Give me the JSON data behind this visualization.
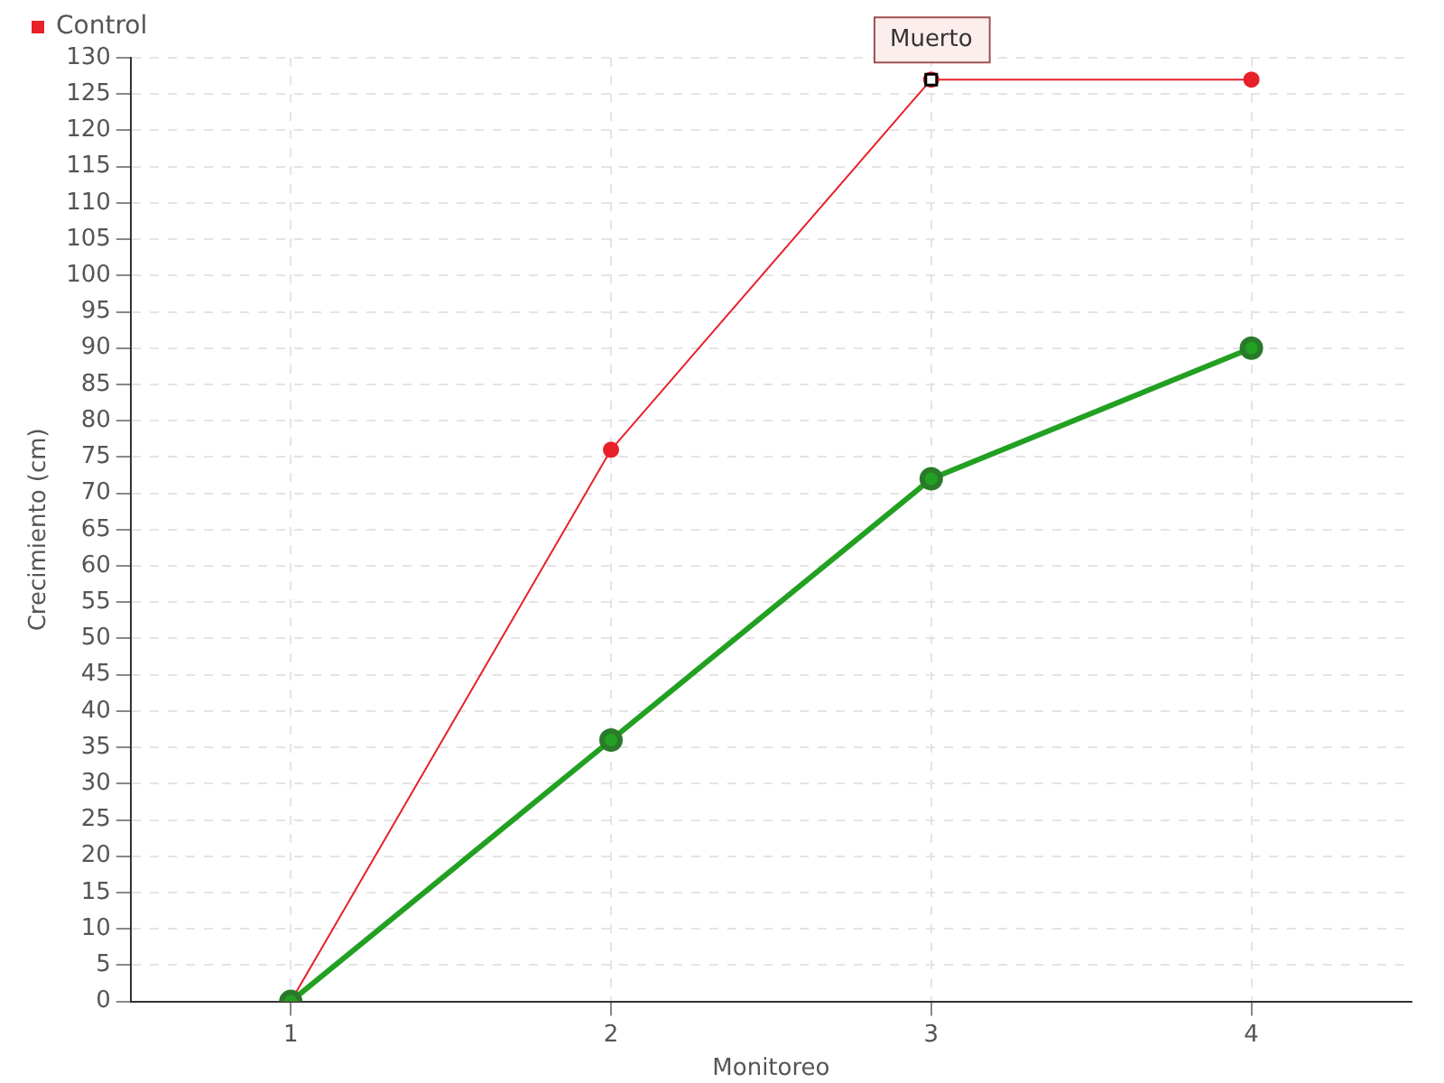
{
  "chart_data": {
    "type": "line",
    "xlabel": "Monitoreo",
    "ylabel": "Crecimiento (cm)",
    "categories": [
      "1",
      "2",
      "3",
      "4"
    ],
    "series": [
      {
        "color": "#22a022",
        "values": [
          0,
          36,
          72,
          90
        ]
      },
      {
        "name": "Control",
        "color": "#e8202a",
        "values": [
          0,
          76,
          127,
          127
        ]
      }
    ],
    "ylim": [
      0,
      130
    ],
    "yticks": [
      0,
      5,
      10,
      15,
      20,
      25,
      30,
      35,
      40,
      45,
      50,
      55,
      60,
      65,
      70,
      75,
      80,
      85,
      90,
      95,
      100,
      105,
      110,
      115,
      120,
      125,
      130
    ],
    "grid": true,
    "legend": "top left",
    "marker": "circle",
    "line_style": "solid",
    "annotations": [
      {
        "text": "Muerto",
        "x": "3",
        "y": 127
      }
    ]
  }
}
